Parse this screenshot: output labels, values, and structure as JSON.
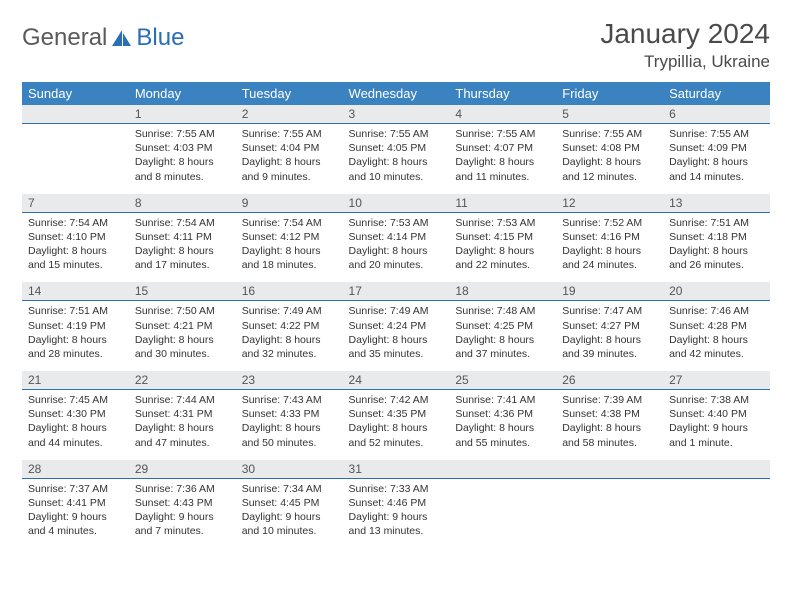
{
  "logo": {
    "text_general": "General",
    "text_blue": "Blue"
  },
  "header": {
    "month_title": "January 2024",
    "location": "Trypillia, Ukraine"
  },
  "colors": {
    "header_bg": "#3b83c0",
    "header_fg": "#ffffff",
    "num_bg": "#e9eaeb",
    "num_fg": "#555555",
    "num_border": "#2a6fb5",
    "text": "#333333",
    "logo_gray": "#5a5a5a",
    "logo_blue": "#2a6fb5"
  },
  "days_of_week": [
    "Sunday",
    "Monday",
    "Tuesday",
    "Wednesday",
    "Thursday",
    "Friday",
    "Saturday"
  ],
  "weeks": [
    {
      "nums": [
        "",
        "1",
        "2",
        "3",
        "4",
        "5",
        "6"
      ],
      "cells": [
        {
          "sunrise": "",
          "sunset": "",
          "daylight": ""
        },
        {
          "sunrise": "Sunrise: 7:55 AM",
          "sunset": "Sunset: 4:03 PM",
          "daylight": "Daylight: 8 hours and 8 minutes."
        },
        {
          "sunrise": "Sunrise: 7:55 AM",
          "sunset": "Sunset: 4:04 PM",
          "daylight": "Daylight: 8 hours and 9 minutes."
        },
        {
          "sunrise": "Sunrise: 7:55 AM",
          "sunset": "Sunset: 4:05 PM",
          "daylight": "Daylight: 8 hours and 10 minutes."
        },
        {
          "sunrise": "Sunrise: 7:55 AM",
          "sunset": "Sunset: 4:07 PM",
          "daylight": "Daylight: 8 hours and 11 minutes."
        },
        {
          "sunrise": "Sunrise: 7:55 AM",
          "sunset": "Sunset: 4:08 PM",
          "daylight": "Daylight: 8 hours and 12 minutes."
        },
        {
          "sunrise": "Sunrise: 7:55 AM",
          "sunset": "Sunset: 4:09 PM",
          "daylight": "Daylight: 8 hours and 14 minutes."
        }
      ]
    },
    {
      "nums": [
        "7",
        "8",
        "9",
        "10",
        "11",
        "12",
        "13"
      ],
      "cells": [
        {
          "sunrise": "Sunrise: 7:54 AM",
          "sunset": "Sunset: 4:10 PM",
          "daylight": "Daylight: 8 hours and 15 minutes."
        },
        {
          "sunrise": "Sunrise: 7:54 AM",
          "sunset": "Sunset: 4:11 PM",
          "daylight": "Daylight: 8 hours and 17 minutes."
        },
        {
          "sunrise": "Sunrise: 7:54 AM",
          "sunset": "Sunset: 4:12 PM",
          "daylight": "Daylight: 8 hours and 18 minutes."
        },
        {
          "sunrise": "Sunrise: 7:53 AM",
          "sunset": "Sunset: 4:14 PM",
          "daylight": "Daylight: 8 hours and 20 minutes."
        },
        {
          "sunrise": "Sunrise: 7:53 AM",
          "sunset": "Sunset: 4:15 PM",
          "daylight": "Daylight: 8 hours and 22 minutes."
        },
        {
          "sunrise": "Sunrise: 7:52 AM",
          "sunset": "Sunset: 4:16 PM",
          "daylight": "Daylight: 8 hours and 24 minutes."
        },
        {
          "sunrise": "Sunrise: 7:51 AM",
          "sunset": "Sunset: 4:18 PM",
          "daylight": "Daylight: 8 hours and 26 minutes."
        }
      ]
    },
    {
      "nums": [
        "14",
        "15",
        "16",
        "17",
        "18",
        "19",
        "20"
      ],
      "cells": [
        {
          "sunrise": "Sunrise: 7:51 AM",
          "sunset": "Sunset: 4:19 PM",
          "daylight": "Daylight: 8 hours and 28 minutes."
        },
        {
          "sunrise": "Sunrise: 7:50 AM",
          "sunset": "Sunset: 4:21 PM",
          "daylight": "Daylight: 8 hours and 30 minutes."
        },
        {
          "sunrise": "Sunrise: 7:49 AM",
          "sunset": "Sunset: 4:22 PM",
          "daylight": "Daylight: 8 hours and 32 minutes."
        },
        {
          "sunrise": "Sunrise: 7:49 AM",
          "sunset": "Sunset: 4:24 PM",
          "daylight": "Daylight: 8 hours and 35 minutes."
        },
        {
          "sunrise": "Sunrise: 7:48 AM",
          "sunset": "Sunset: 4:25 PM",
          "daylight": "Daylight: 8 hours and 37 minutes."
        },
        {
          "sunrise": "Sunrise: 7:47 AM",
          "sunset": "Sunset: 4:27 PM",
          "daylight": "Daylight: 8 hours and 39 minutes."
        },
        {
          "sunrise": "Sunrise: 7:46 AM",
          "sunset": "Sunset: 4:28 PM",
          "daylight": "Daylight: 8 hours and 42 minutes."
        }
      ]
    },
    {
      "nums": [
        "21",
        "22",
        "23",
        "24",
        "25",
        "26",
        "27"
      ],
      "cells": [
        {
          "sunrise": "Sunrise: 7:45 AM",
          "sunset": "Sunset: 4:30 PM",
          "daylight": "Daylight: 8 hours and 44 minutes."
        },
        {
          "sunrise": "Sunrise: 7:44 AM",
          "sunset": "Sunset: 4:31 PM",
          "daylight": "Daylight: 8 hours and 47 minutes."
        },
        {
          "sunrise": "Sunrise: 7:43 AM",
          "sunset": "Sunset: 4:33 PM",
          "daylight": "Daylight: 8 hours and 50 minutes."
        },
        {
          "sunrise": "Sunrise: 7:42 AM",
          "sunset": "Sunset: 4:35 PM",
          "daylight": "Daylight: 8 hours and 52 minutes."
        },
        {
          "sunrise": "Sunrise: 7:41 AM",
          "sunset": "Sunset: 4:36 PM",
          "daylight": "Daylight: 8 hours and 55 minutes."
        },
        {
          "sunrise": "Sunrise: 7:39 AM",
          "sunset": "Sunset: 4:38 PM",
          "daylight": "Daylight: 8 hours and 58 minutes."
        },
        {
          "sunrise": "Sunrise: 7:38 AM",
          "sunset": "Sunset: 4:40 PM",
          "daylight": "Daylight: 9 hours and 1 minute."
        }
      ]
    },
    {
      "nums": [
        "28",
        "29",
        "30",
        "31",
        "",
        "",
        ""
      ],
      "cells": [
        {
          "sunrise": "Sunrise: 7:37 AM",
          "sunset": "Sunset: 4:41 PM",
          "daylight": "Daylight: 9 hours and 4 minutes."
        },
        {
          "sunrise": "Sunrise: 7:36 AM",
          "sunset": "Sunset: 4:43 PM",
          "daylight": "Daylight: 9 hours and 7 minutes."
        },
        {
          "sunrise": "Sunrise: 7:34 AM",
          "sunset": "Sunset: 4:45 PM",
          "daylight": "Daylight: 9 hours and 10 minutes."
        },
        {
          "sunrise": "Sunrise: 7:33 AM",
          "sunset": "Sunset: 4:46 PM",
          "daylight": "Daylight: 9 hours and 13 minutes."
        },
        {
          "sunrise": "",
          "sunset": "",
          "daylight": ""
        },
        {
          "sunrise": "",
          "sunset": "",
          "daylight": ""
        },
        {
          "sunrise": "",
          "sunset": "",
          "daylight": ""
        }
      ]
    }
  ]
}
